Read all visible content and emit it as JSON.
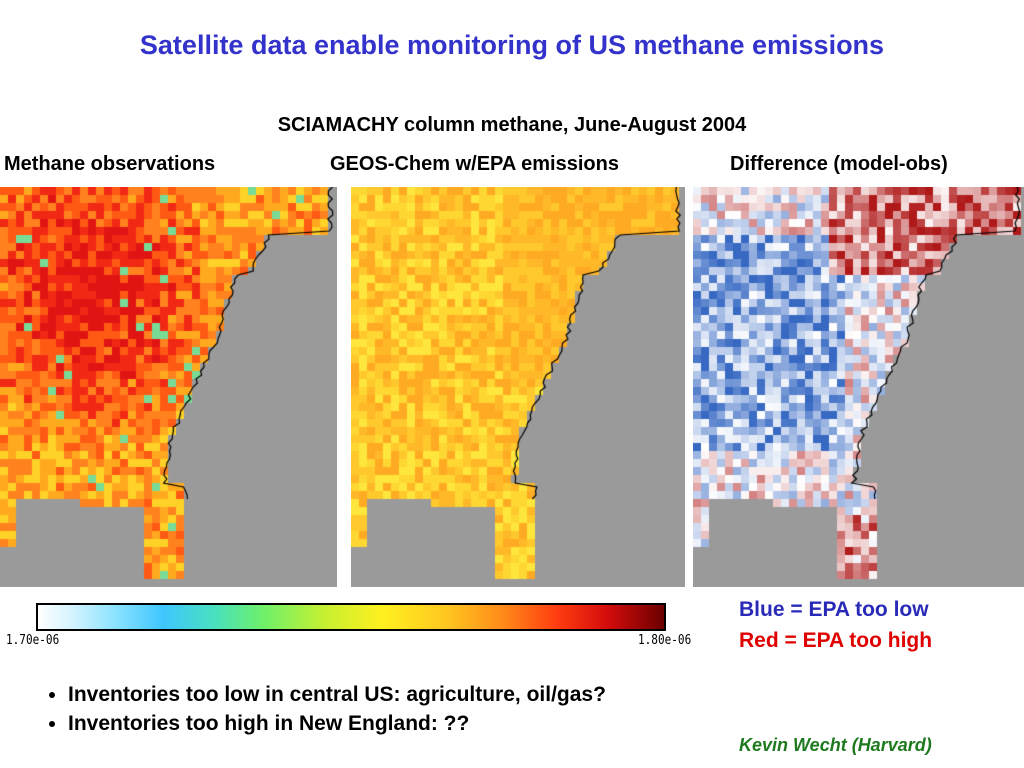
{
  "title": "Satellite data enable monitoring of US methane emissions",
  "subtitle": "SCIAMACHY column methane, June-August 2004",
  "panels": {
    "obs_label": "Methane observations",
    "model_label": "GEOS-Chem w/EPA emissions",
    "diff_label": "Difference (model-obs)"
  },
  "colorbar": {
    "min_label": "1.70e-06",
    "max_label": "1.80e-06",
    "palette": [
      "#ffffff",
      "#8fe4ff",
      "#3fc6ff",
      "#6ef06a",
      "#fff020",
      "#ff8c1a",
      "#ff3c10",
      "#d40c0c",
      "#6c0000"
    ]
  },
  "legend": {
    "blue_text": "Blue = EPA too low",
    "red_text": "Red = EPA too high",
    "blue_color": "#2a2ab8",
    "red_color": "#e00000"
  },
  "bullets": [
    "Inventories too low in central US: agriculture, oil/gas?",
    "Inventories too high in New England: ??"
  ],
  "credit": "Kevin Wecht (Harvard)",
  "colors": {
    "title": "#3333cc",
    "ocean": "#9a9a9a",
    "credit": "#1f7a1f"
  }
}
